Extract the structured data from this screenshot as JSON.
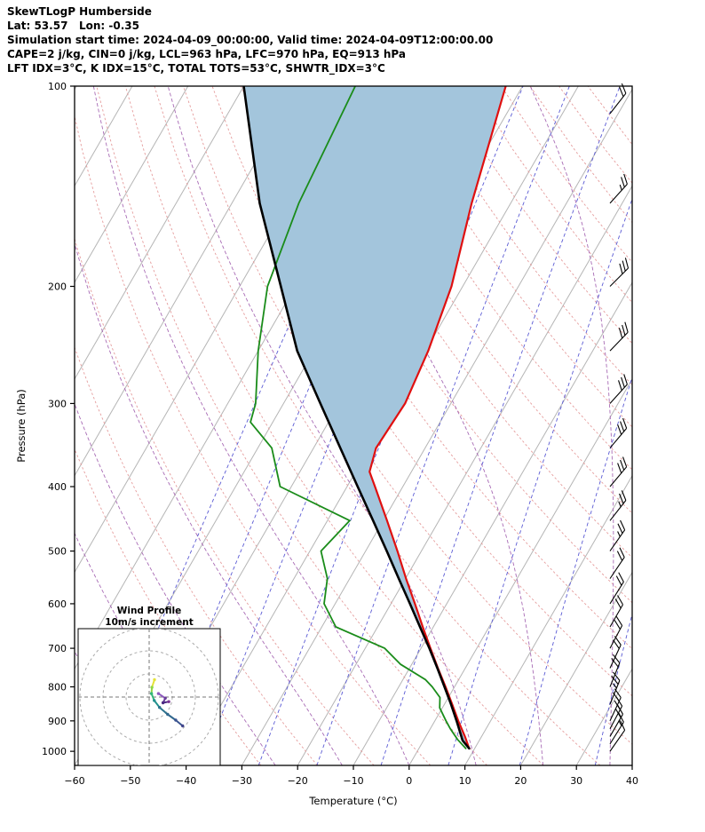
{
  "header": {
    "line1": "SkewTLogP Humberside",
    "line2": "Lat: 53.57   Lon: -0.35",
    "line3": "Simulation start time: 2024-04-09_00:00:00, Valid time: 2024-04-09T12:00:00.00",
    "line4": "CAPE=2 j/kg, CIN=0 j/kg, LCL=963 hPa, LFC=970 hPa, EQ=913 hPa",
    "line5": "LFT IDX=3°C, K IDX=15°C, TOTAL TOTS=53°C, SHWTR_IDX=3°C"
  },
  "chart_data": {
    "type": "line",
    "chart_kind": "skewT-logP-sounding",
    "title": "SkewTLogP Humberside",
    "xlabel": "Temperature (°C)",
    "ylabel": "Pressure (hPa)",
    "x_range": [
      -60,
      40
    ],
    "x_ticks": [
      -60,
      -50,
      -40,
      -30,
      -20,
      -10,
      0,
      10,
      20,
      30,
      40
    ],
    "pressure_range": [
      100,
      1050
    ],
    "pressure_ticks": [
      100,
      200,
      300,
      400,
      500,
      600,
      700,
      800,
      900,
      1000
    ],
    "skew_slope_deg": 30,
    "background": {
      "isotherm_step_c": 10,
      "isotherm_color": "#b5b5b5",
      "dry_adiabat_theta_c": {
        "from": -30,
        "to": 180,
        "step": 10
      },
      "dry_adiabat_color": "#e59c9c",
      "moist_adiabat_start_c": [
        -60,
        -48,
        -36,
        -24,
        -12,
        0,
        12,
        24,
        36
      ],
      "moist_adiabat_color": "#a86bb5",
      "mixing_ratio_g_kg": [
        0.02,
        0.06,
        0.15,
        0.4,
        1,
        2.5,
        6,
        14,
        32
      ],
      "mixing_ratio_color": "#5a5ad4",
      "shade_color": "#a3c5dc"
    },
    "series": [
      {
        "name": "temperature",
        "color": "#e01010",
        "width": 2.2,
        "points": [
          [
            990,
            9.0
          ],
          [
            950,
            7.0
          ],
          [
            900,
            4.2
          ],
          [
            850,
            1.4
          ],
          [
            800,
            -1.6
          ],
          [
            750,
            -4.9
          ],
          [
            700,
            -8.3
          ],
          [
            650,
            -11.9
          ],
          [
            600,
            -15.7
          ],
          [
            550,
            -19.9
          ],
          [
            500,
            -24.3
          ],
          [
            450,
            -29.3
          ],
          [
            400,
            -35.0
          ],
          [
            380,
            -37.5
          ],
          [
            350,
            -38.8
          ],
          [
            300,
            -38.2
          ],
          [
            250,
            -39.5
          ],
          [
            200,
            -42.0
          ],
          [
            150,
            -47.0
          ],
          [
            100,
            -53.0
          ]
        ]
      },
      {
        "name": "dewpoint",
        "color": "#1a8c1a",
        "width": 1.8,
        "points": [
          [
            990,
            8.4
          ],
          [
            960,
            6.0
          ],
          [
            925,
            3.6
          ],
          [
            900,
            2.0
          ],
          [
            860,
            -0.5
          ],
          [
            830,
            -1.5
          ],
          [
            800,
            -4.0
          ],
          [
            780,
            -6.0
          ],
          [
            740,
            -12.0
          ],
          [
            700,
            -16.5
          ],
          [
            650,
            -27.5
          ],
          [
            600,
            -32.0
          ],
          [
            550,
            -34.0
          ],
          [
            500,
            -38.0
          ],
          [
            450,
            -36.0
          ],
          [
            400,
            -52.0
          ],
          [
            350,
            -57.5
          ],
          [
            320,
            -64.0
          ],
          [
            300,
            -65.0
          ],
          [
            250,
            -70.0
          ],
          [
            200,
            -75.0
          ],
          [
            150,
            -78.0
          ],
          [
            100,
            -80.0
          ]
        ]
      },
      {
        "name": "parcel",
        "color": "#000000",
        "width": 2.6,
        "points": [
          [
            990,
            9.0
          ],
          [
            963,
            7.0
          ],
          [
            900,
            3.9
          ],
          [
            850,
            1.2
          ],
          [
            800,
            -1.8
          ],
          [
            750,
            -5.0
          ],
          [
            700,
            -8.5
          ],
          [
            650,
            -12.4
          ],
          [
            600,
            -16.6
          ],
          [
            550,
            -21.2
          ],
          [
            500,
            -26.2
          ],
          [
            450,
            -31.8
          ],
          [
            400,
            -38.1
          ],
          [
            350,
            -45.2
          ],
          [
            300,
            -53.4
          ],
          [
            250,
            -63.0
          ],
          [
            200,
            -72.6
          ],
          [
            150,
            -85.0
          ],
          [
            100,
            -100.0
          ]
        ]
      }
    ],
    "shade_between": [
      "parcel",
      "temperature"
    ],
    "wind_barbs_kt": [
      [
        1000,
        35,
        12
      ],
      [
        975,
        32,
        15
      ],
      [
        950,
        30,
        18
      ],
      [
        925,
        28,
        20
      ],
      [
        900,
        25,
        22
      ],
      [
        850,
        22,
        25
      ],
      [
        800,
        22,
        22
      ],
      [
        750,
        25,
        20
      ],
      [
        700,
        28,
        18
      ],
      [
        650,
        30,
        18
      ],
      [
        600,
        32,
        20
      ],
      [
        550,
        34,
        22
      ],
      [
        500,
        35,
        25
      ],
      [
        450,
        38,
        25
      ],
      [
        400,
        40,
        28
      ],
      [
        350,
        40,
        30
      ],
      [
        300,
        42,
        32
      ],
      [
        250,
        44,
        30
      ],
      [
        200,
        45,
        28
      ],
      [
        150,
        42,
        25
      ],
      [
        110,
        38,
        22
      ]
    ],
    "hodograph": {
      "title": "Wind Profile",
      "subtitle": "10m/s increment",
      "ring_interval_m_s": 10,
      "rings_m_s": [
        10,
        20,
        30
      ],
      "trace_m_s": [
        [
          2.3,
          7.5
        ],
        [
          1.2,
          4.2
        ],
        [
          1.0,
          1.5
        ],
        [
          2.2,
          -1.5
        ],
        [
          4.5,
          -4.5
        ],
        [
          8.0,
          -7.5
        ],
        [
          11.5,
          -10.0
        ],
        [
          14.5,
          -12.5
        ]
      ],
      "trace_colors": [
        "#e5e33a",
        "#8fd744",
        "#35b779",
        "#21908d",
        "#2c728e",
        "#31688e",
        "#3a5490",
        "#41448c"
      ],
      "cluster_m_s": [
        [
          4.0,
          1.5
        ],
        [
          7.0,
          -0.5
        ],
        [
          6.0,
          -2.5
        ],
        [
          8.5,
          -2.0
        ]
      ],
      "cluster_colors": [
        "#8e5bbf",
        "#6a3d9a",
        "#4b2882",
        "#7b3294"
      ]
    }
  }
}
